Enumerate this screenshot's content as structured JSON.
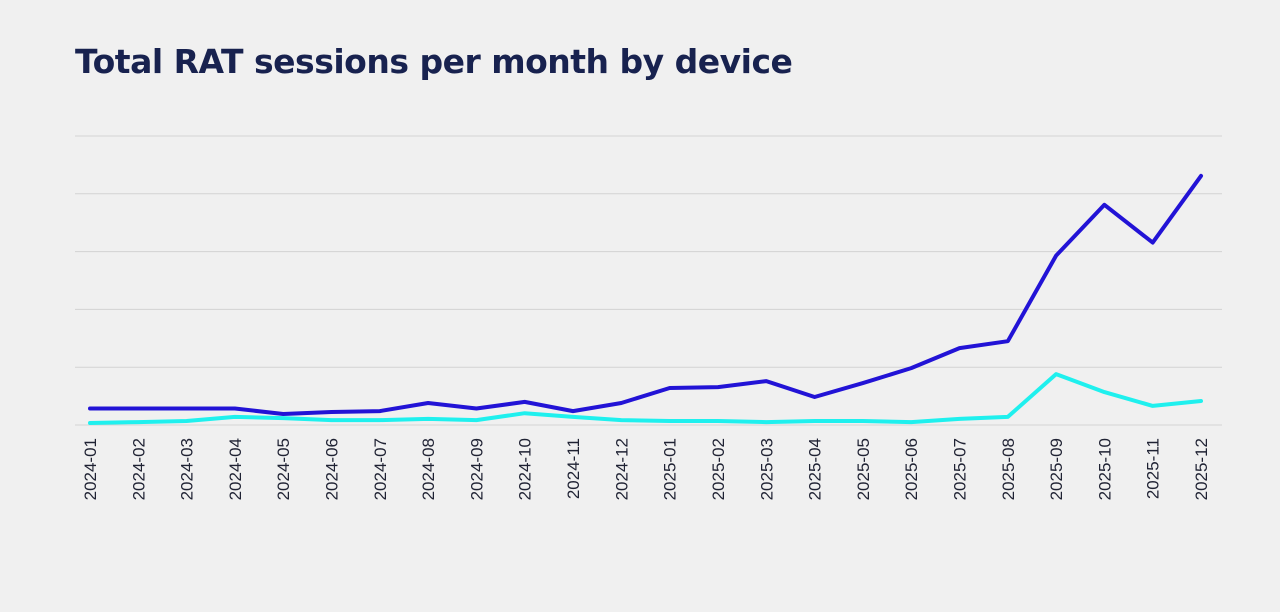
{
  "title": "Total RAT sessions per month by device",
  "colors": {
    "background": "#f0f0f0",
    "title": "#18224f",
    "grid": "#d3d3d3"
  },
  "chart_data": {
    "type": "line",
    "title": "Total RAT sessions per month by device",
    "xlabel": "",
    "ylabel": "",
    "grid": true,
    "legend": "none",
    "y_tick_labels_shown": false,
    "ylim": [
      0,
      100
    ],
    "y_gridlines": [
      0,
      20,
      40,
      60,
      80,
      100
    ],
    "x": [
      "2024-01",
      "2024-02",
      "2024-03",
      "2024-04",
      "2024-05",
      "2024-06",
      "2024-07",
      "2024-08",
      "2024-09",
      "2024-10",
      "2024-11",
      "2024-12",
      "2025-01",
      "2025-02",
      "2025-03",
      "2025-04",
      "2025-05",
      "2025-06",
      "2025-07",
      "2025-08",
      "2025-09",
      "2025-10",
      "2025-11",
      "2025-12"
    ],
    "series": [
      {
        "color": "#2213d6",
        "values": [
          5.7,
          5.7,
          5.7,
          5.7,
          3.8,
          4.5,
          4.8,
          7.6,
          5.7,
          8.0,
          4.8,
          7.6,
          12.8,
          13.1,
          15.2,
          9.7,
          14.5,
          19.7,
          26.6,
          29.0,
          58.6,
          76.2,
          63.1,
          86.2
        ]
      },
      {
        "color": "#1ff0ee",
        "values": [
          0.7,
          1.0,
          1.4,
          2.8,
          2.4,
          1.7,
          1.7,
          2.1,
          1.7,
          4.1,
          2.8,
          1.7,
          1.4,
          1.4,
          1.0,
          1.4,
          1.4,
          1.0,
          2.1,
          2.8,
          17.6,
          11.4,
          6.6,
          8.3
        ]
      }
    ]
  }
}
